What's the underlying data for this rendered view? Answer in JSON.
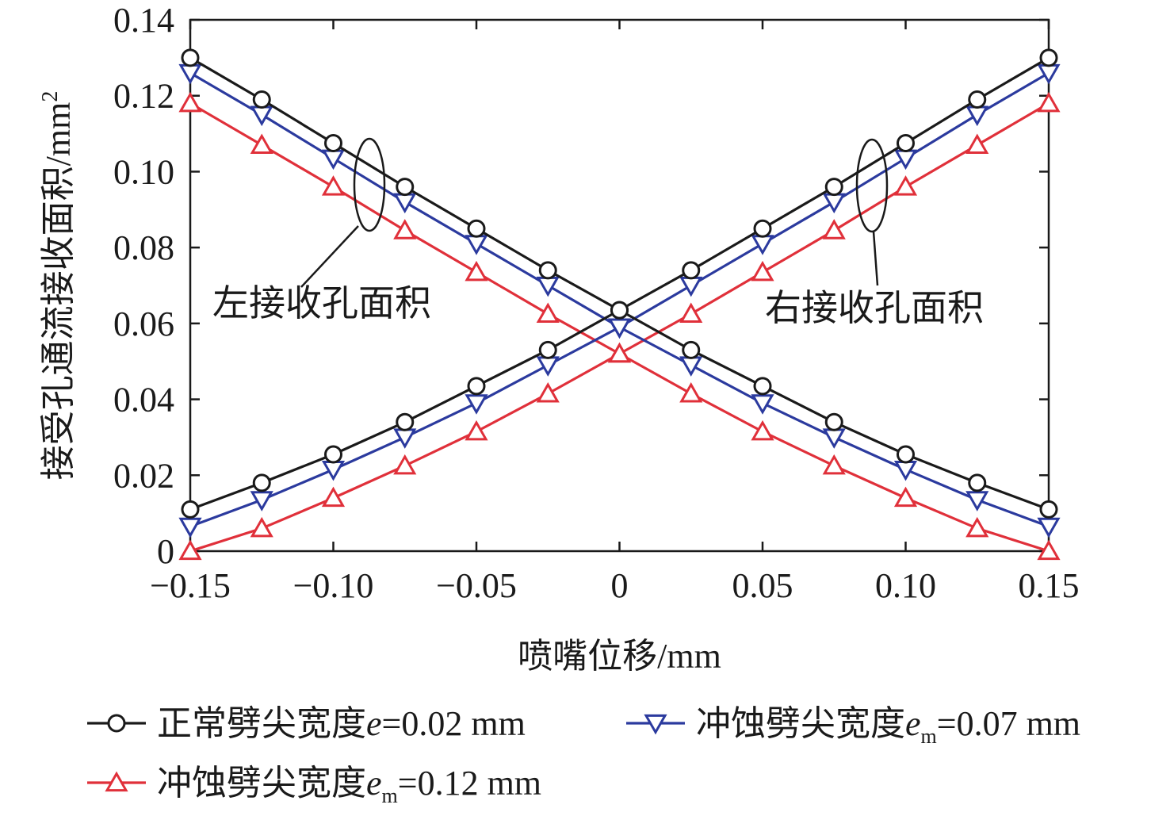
{
  "chart_data": {
    "type": "line",
    "title": "",
    "xlabel": "喷嘴位移/mm",
    "ylabel_main": "接受孔通流接收面积/mm",
    "ylabel_sup": "2",
    "xlim": [
      -0.15,
      0.15
    ],
    "ylim": [
      0,
      0.14
    ],
    "xticks": [
      -0.15,
      -0.1,
      -0.05,
      0,
      0.05,
      0.1,
      0.15
    ],
    "xtick_labels": [
      "−0.15",
      "−0.10",
      "−0.05",
      "0",
      "0.05",
      "0.10",
      "0.15"
    ],
    "yticks": [
      0,
      0.02,
      0.04,
      0.06,
      0.08,
      0.1,
      0.12,
      0.14
    ],
    "ytick_labels": [
      "0",
      "0.02",
      "0.04",
      "0.06",
      "0.08",
      "0.10",
      "0.12",
      "0.14"
    ],
    "x": [
      -0.15,
      -0.125,
      -0.1,
      -0.075,
      -0.05,
      -0.025,
      0,
      0.025,
      0.05,
      0.075,
      0.1,
      0.125,
      0.15
    ],
    "annotations": {
      "left": "左接收孔面积",
      "right": "右接收孔面积"
    },
    "series": [
      {
        "name": "正常劈尖宽度e=0.02 mm",
        "legend_main": "正常劈尖宽度",
        "legend_var": "e",
        "legend_sub": "",
        "legend_tail": "=0.02 mm",
        "marker": "circle",
        "color": "#1a1a1a",
        "left_values": [
          0.13,
          0.119,
          0.1075,
          0.096,
          0.085,
          0.074,
          0.0635,
          0.053,
          0.0435,
          0.034,
          0.0255,
          0.018,
          0.011
        ],
        "right_values": [
          0.011,
          0.018,
          0.0255,
          0.034,
          0.0435,
          0.053,
          0.0635,
          0.074,
          0.085,
          0.096,
          0.1075,
          0.119,
          0.13
        ]
      },
      {
        "name": "冲蚀劈尖宽度em=0.07 mm",
        "legend_main": "冲蚀劈尖宽度",
        "legend_var": "e",
        "legend_sub": "m",
        "legend_tail": "=0.07 mm",
        "marker": "triangle-down",
        "color": "#2b3a9e",
        "left_values": [
          0.126,
          0.115,
          0.1035,
          0.092,
          0.081,
          0.07,
          0.059,
          0.049,
          0.039,
          0.03,
          0.0215,
          0.0135,
          0.0065
        ],
        "right_values": [
          0.0065,
          0.0135,
          0.0215,
          0.03,
          0.039,
          0.049,
          0.059,
          0.07,
          0.081,
          0.092,
          0.1035,
          0.115,
          0.126
        ]
      },
      {
        "name": "冲蚀劈尖宽度em=0.12 mm",
        "legend_main": "冲蚀劈尖宽度",
        "legend_var": "e",
        "legend_sub": "m",
        "legend_tail": "=0.12 mm",
        "marker": "triangle-up",
        "color": "#e0303a",
        "left_values": [
          0.118,
          0.107,
          0.096,
          0.0845,
          0.0735,
          0.0625,
          0.052,
          0.0415,
          0.0315,
          0.0225,
          0.014,
          0.006,
          0.0
        ],
        "right_values": [
          0.0,
          0.006,
          0.014,
          0.0225,
          0.0315,
          0.0415,
          0.052,
          0.0625,
          0.0735,
          0.0845,
          0.096,
          0.107,
          0.118
        ]
      }
    ],
    "legend_position": "bottom"
  }
}
